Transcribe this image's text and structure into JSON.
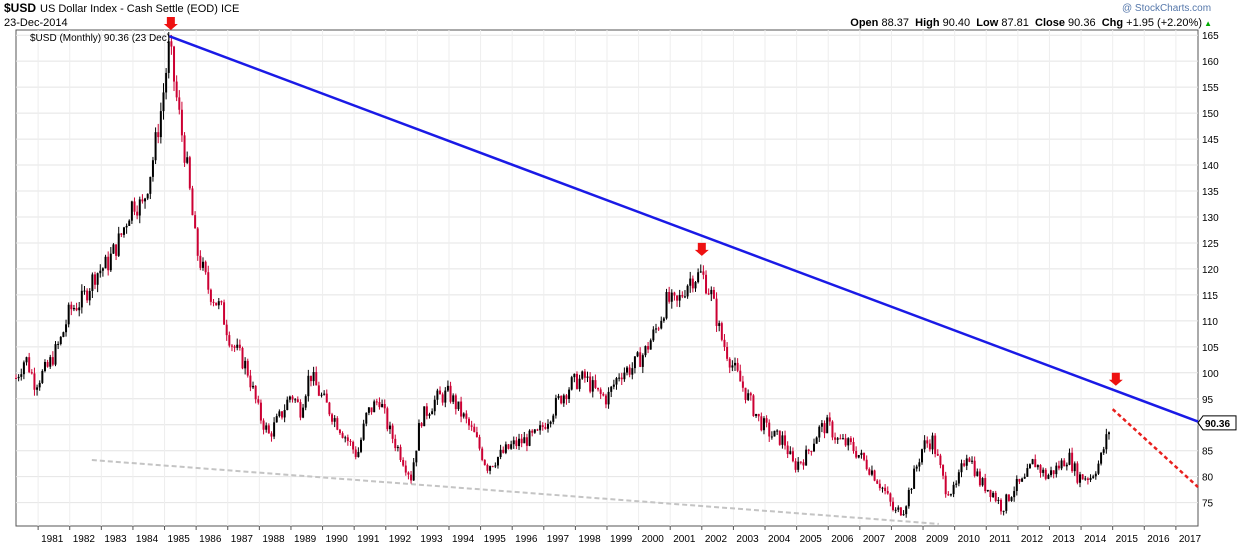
{
  "header": {
    "symbol": "$USD",
    "name": "US Dollar Index - Cash Settle (EOD)",
    "exchange": "ICE",
    "date": "23-Dec-2014",
    "watermark": "@ StockCharts.com",
    "ohlc": [
      {
        "label": "Open",
        "value": "88.37"
      },
      {
        "label": "High",
        "value": "90.40"
      },
      {
        "label": "Low",
        "value": "87.81"
      },
      {
        "label": "Close",
        "value": "90.36"
      },
      {
        "label": "Chg",
        "value": "+1.95 (+2.20%)"
      }
    ],
    "colors": {
      "up": "#000000",
      "down": "#cc0033",
      "trendline": "#1a1ae6",
      "projection": "#e8201e",
      "support": "#c4c4c4",
      "arrow": "#ee1111",
      "chg_arrow": "#00aa00"
    }
  },
  "chart_data": {
    "type": "candlestick",
    "title": "$USD US Dollar Index - Cash Settle (EOD) ICE",
    "legend": "$USD (Monthly) 90.36 (23 Dec)",
    "last_value_label": "90.36",
    "xlim": [
      1980.3,
      2017.7
    ],
    "ylim": [
      70.5,
      166
    ],
    "y_ticks": [
      75,
      80,
      85,
      90,
      95,
      100,
      105,
      110,
      115,
      120,
      125,
      130,
      135,
      140,
      145,
      150,
      155,
      160,
      165
    ],
    "x_ticks": [
      1981,
      1982,
      1983,
      1984,
      1985,
      1986,
      1987,
      1988,
      1989,
      1990,
      1991,
      1992,
      1993,
      1994,
      1995,
      1996,
      1997,
      1998,
      1999,
      2000,
      2001,
      2002,
      2003,
      2004,
      2005,
      2006,
      2007,
      2008,
      2009,
      2010,
      2011,
      2012,
      2013,
      2014,
      2015,
      2016,
      2017
    ],
    "anchors": [
      [
        1980.3,
        99
      ],
      [
        1980.6,
        103
      ],
      [
        1980.9,
        98
      ],
      [
        1981.3,
        101
      ],
      [
        1981.7,
        106
      ],
      [
        1982.0,
        112
      ],
      [
        1982.4,
        114
      ],
      [
        1982.8,
        119
      ],
      [
        1983.2,
        121
      ],
      [
        1983.6,
        126
      ],
      [
        1984.0,
        133
      ],
      [
        1984.3,
        132
      ],
      [
        1984.6,
        140
      ],
      [
        1984.9,
        151
      ],
      [
        1985.15,
        163
      ],
      [
        1985.4,
        152
      ],
      [
        1985.7,
        140
      ],
      [
        1986.0,
        124
      ],
      [
        1986.4,
        116
      ],
      [
        1986.8,
        112
      ],
      [
        1987.1,
        106
      ],
      [
        1987.6,
        101
      ],
      [
        1988.0,
        92
      ],
      [
        1988.3,
        88
      ],
      [
        1988.7,
        92
      ],
      [
        1989.0,
        96
      ],
      [
        1989.3,
        93
      ],
      [
        1989.6,
        100
      ],
      [
        1989.9,
        96
      ],
      [
        1990.3,
        92
      ],
      [
        1990.8,
        87
      ],
      [
        1991.1,
        84
      ],
      [
        1991.4,
        92
      ],
      [
        1991.8,
        95
      ],
      [
        1992.1,
        89
      ],
      [
        1992.5,
        84
      ],
      [
        1992.8,
        80
      ],
      [
        1993.1,
        91
      ],
      [
        1993.6,
        95
      ],
      [
        1994.0,
        96
      ],
      [
        1994.4,
        92
      ],
      [
        1994.8,
        88
      ],
      [
        1995.2,
        82
      ],
      [
        1995.6,
        84
      ],
      [
        1996.0,
        86
      ],
      [
        1996.4,
        87
      ],
      [
        1996.8,
        88
      ],
      [
        1997.1,
        91
      ],
      [
        1997.5,
        95
      ],
      [
        1997.9,
        98
      ],
      [
        1998.3,
        99
      ],
      [
        1998.7,
        96
      ],
      [
        1999.0,
        95
      ],
      [
        1999.4,
        100
      ],
      [
        1999.8,
        101
      ],
      [
        2000.2,
        104
      ],
      [
        2000.6,
        109
      ],
      [
        2000.9,
        114
      ],
      [
        2001.2,
        113
      ],
      [
        2001.6,
        118
      ],
      [
        2002.0,
        119
      ],
      [
        2002.3,
        115
      ],
      [
        2002.6,
        107
      ],
      [
        2003.0,
        101
      ],
      [
        2003.4,
        96
      ],
      [
        2003.8,
        91
      ],
      [
        2004.2,
        88
      ],
      [
        2004.6,
        87
      ],
      [
        2004.9,
        82
      ],
      [
        2005.3,
        84
      ],
      [
        2005.7,
        89
      ],
      [
        2006.0,
        90
      ],
      [
        2006.3,
        87
      ],
      [
        2006.7,
        86
      ],
      [
        2007.0,
        84
      ],
      [
        2007.4,
        81
      ],
      [
        2007.8,
        77
      ],
      [
        2008.1,
        73
      ],
      [
        2008.4,
        74
      ],
      [
        2008.7,
        80
      ],
      [
        2009.0,
        86
      ],
      [
        2009.3,
        87
      ],
      [
        2009.7,
        78
      ],
      [
        2010.0,
        77
      ],
      [
        2010.4,
        85
      ],
      [
        2010.8,
        79
      ],
      [
        2011.2,
        77
      ],
      [
        2011.5,
        74
      ],
      [
        2011.9,
        78
      ],
      [
        2012.2,
        79
      ],
      [
        2012.5,
        83
      ],
      [
        2012.9,
        80
      ],
      [
        2013.3,
        82
      ],
      [
        2013.6,
        84
      ],
      [
        2013.9,
        80
      ],
      [
        2014.3,
        80
      ],
      [
        2014.6,
        83
      ],
      [
        2014.95,
        90.36
      ]
    ],
    "trendline": {
      "from": [
        1985.15,
        164.8
      ],
      "to": [
        2017.7,
        90.6
      ]
    },
    "projection": {
      "from": [
        2015.0,
        93.0
      ],
      "to": [
        2017.7,
        78
      ]
    },
    "support": {
      "from": [
        1982.7,
        83.2
      ],
      "to": [
        2009.5,
        70.9
      ]
    },
    "peak_markers": [
      [
        1985.2,
        166
      ],
      [
        2002.0,
        122.5
      ],
      [
        2015.1,
        97.5
      ]
    ]
  }
}
